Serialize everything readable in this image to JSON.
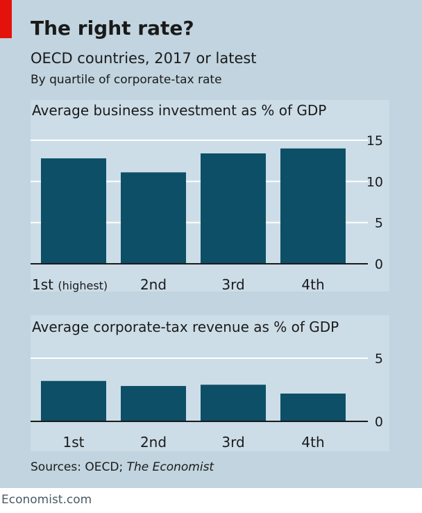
{
  "header": {
    "title": "The right rate?",
    "subtitle": "OECD countries, 2017 or latest",
    "note": "By quartile of corporate-tax rate"
  },
  "colors": {
    "background": "#c1d4df",
    "panel": "#ccdde8",
    "bar": "#0d4f66",
    "accent": "#e3120b"
  },
  "chart_data": [
    {
      "type": "bar",
      "title": "Average business investment as % of GDP",
      "categories": [
        "1st",
        "2nd",
        "3rd",
        "4th"
      ],
      "category_suffix": [
        "(highest)",
        "",
        "",
        ""
      ],
      "values": [
        12.8,
        11.1,
        13.4,
        14.0
      ],
      "ylim": [
        0,
        15
      ],
      "yticks": [
        0,
        5,
        10,
        15
      ],
      "grid": true,
      "xlabel": "",
      "ylabel": ""
    },
    {
      "type": "bar",
      "title": "Average corporate-tax revenue as % of GDP",
      "categories": [
        "1st",
        "2nd",
        "3rd",
        "4th"
      ],
      "category_suffix": [
        "",
        "",
        "",
        ""
      ],
      "values": [
        3.2,
        2.8,
        2.9,
        2.2
      ],
      "ylim": [
        0,
        5
      ],
      "yticks": [
        0,
        5
      ],
      "grid": true,
      "xlabel": "",
      "ylabel": ""
    }
  ],
  "source": {
    "prefix": "Sources: OECD; ",
    "italic": "The Economist"
  },
  "footer": "Economist.com"
}
